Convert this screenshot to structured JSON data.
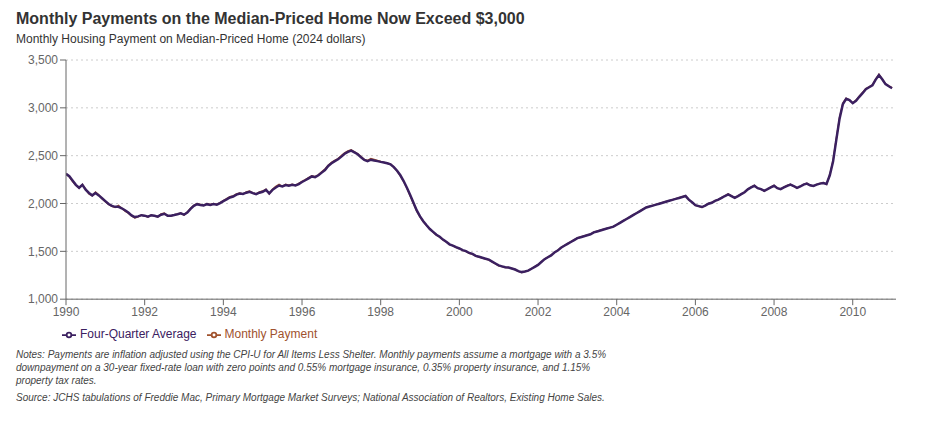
{
  "chart_data": {
    "type": "line",
    "title": "Monthly Payments on the Median-Priced Home Now Exceed $3,000",
    "subtitle": "Monthly Housing Payment on Median-Priced Home (2024 dollars)",
    "annotations": [
      "Notes: Payments are inflation adjusted using the CPI-U for All Items Less Shelter. Monthly payments assume a mortgage with a 3.5%\ndownpayment on a 30-year fixed-rate loan with zero points and 0.55% mortgage insurance, 0.35% property insurance, and 1.15%\nproperty tax rates.",
      "Source: JCHS tabulations of Freddie Mac, Primary Mortgage Market Surveys; National Association of Realtors, Existing Home Sales."
    ],
    "xlim": [
      1990,
      2011.1
    ],
    "xticks": [
      1990,
      1992,
      1994,
      1996,
      1998,
      2000,
      2002,
      2004,
      2006,
      2008,
      2010
    ],
    "ylim": [
      1000,
      3500
    ],
    "yticks": [
      {
        "value": 1000,
        "label": "1,000"
      },
      {
        "value": 1500,
        "label": "1,500"
      },
      {
        "value": 2000,
        "label": "2,000"
      },
      {
        "value": 2500,
        "label": "2,500"
      },
      {
        "value": 3000,
        "label": "3,000"
      },
      {
        "value": 3500,
        "label": "3,500"
      }
    ],
    "grid": true,
    "legend": "bottom",
    "x": [
      1990,
      1990.0833333333,
      1990.1666666667,
      1990.25,
      1990.3333333333,
      1990.4166666667,
      1990.5,
      1990.5833333333,
      1990.6666666667,
      1990.75,
      1990.8333333333,
      1990.9166666667,
      1991,
      1991.0833333333,
      1991.1666666667,
      1991.25,
      1991.3333333333,
      1991.4166666667,
      1991.5,
      1991.5833333333,
      1991.6666666667,
      1991.75,
      1991.8333333333,
      1991.9166666667,
      1992,
      1992.0833333333,
      1992.1666666667,
      1992.25,
      1992.3333333333,
      1992.4166666667,
      1992.5,
      1992.5833333333,
      1992.6666666667,
      1992.75,
      1992.8333333333,
      1992.9166666667,
      1993,
      1993.0833333333,
      1993.1666666667,
      1993.25,
      1993.3333333333,
      1993.4166666667,
      1993.5,
      1993.5833333333,
      1993.6666666667,
      1993.75,
      1993.8333333333,
      1993.9166666667,
      1994,
      1994.0833333333,
      1994.1666666667,
      1994.25,
      1994.3333333333,
      1994.4166666667,
      1994.5,
      1994.5833333333,
      1994.6666666667,
      1994.75,
      1994.8333333333,
      1994.9166666667,
      1995,
      1995.0833333333,
      1995.1666666667,
      1995.25,
      1995.3333333333,
      1995.4166666667,
      1995.5,
      1995.5833333333,
      1995.6666666667,
      1995.75,
      1995.8333333333,
      1995.9166666667,
      1996,
      1996.0833333333,
      1996.1666666667,
      1996.25,
      1996.3333333333,
      1996.4166666667,
      1996.5,
      1996.5833333333,
      1996.6666666667,
      1996.75,
      1996.8333333333,
      1996.9166666667,
      1997,
      1997.0833333333,
      1997.1666666667,
      1997.25,
      1997.3333333333,
      1997.4166666667,
      1997.5,
      1997.5833333333,
      1997.6666666667,
      1997.75,
      1997.8333333333,
      1997.9166666667,
      1998,
      1998.0833333333,
      1998.1666666667,
      1998.25,
      1998.3333333333,
      1998.4166666667,
      1998.5,
      1998.5833333333,
      1998.6666666667,
      1998.75,
      1998.8333333333,
      1998.9166666667,
      1999,
      1999.0833333333,
      1999.1666666667,
      1999.25,
      1999.3333333333,
      1999.4166666667,
      1999.5,
      1999.5833333333,
      1999.6666666667,
      1999.75,
      1999.8333333333,
      1999.9166666667,
      2000,
      2000.0833333333,
      2000.1666666667,
      2000.25,
      2000.3333333333,
      2000.4166666667,
      2000.5,
      2000.5833333333,
      2000.6666666667,
      2000.75,
      2000.8333333333,
      2000.9166666667,
      2001,
      2001.0833333333,
      2001.1666666667,
      2001.25,
      2001.3333333333,
      2001.4166666667,
      2001.5,
      2001.5833333333,
      2001.6666666667,
      2001.75,
      2001.8333333333,
      2001.9166666667,
      2002,
      2002.0833333333,
      2002.1666666667,
      2002.25,
      2002.3333333333,
      2002.4166666667,
      2002.5,
      2002.5833333333,
      2002.6666666667,
      2002.75,
      2002.8333333333,
      2002.9166666667,
      2003,
      2003.0833333333,
      2003.1666666667,
      2003.25,
      2003.3333333333,
      2003.4166666667,
      2003.5,
      2003.5833333333,
      2003.6666666667,
      2003.75,
      2003.8333333333,
      2003.9166666667,
      2004,
      2004.0833333333,
      2004.1666666667,
      2004.25,
      2004.3333333333,
      2004.4166666667,
      2004.5,
      2004.5833333333,
      2004.6666666667,
      2004.75,
      2004.8333333333,
      2004.9166666667,
      2005,
      2005.0833333333,
      2005.1666666667,
      2005.25,
      2005.3333333333,
      2005.4166666667,
      2005.5,
      2005.5833333333,
      2005.6666666667,
      2005.75,
      2005.8333333333,
      2005.9166666667,
      2006,
      2006.0833333333,
      2006.1666666667,
      2006.25,
      2006.3333333333,
      2006.4166666667,
      2006.5,
      2006.5833333333,
      2006.6666666667,
      2006.75,
      2006.8333333333,
      2006.9166666667,
      2007,
      2007.0833333333,
      2007.1666666667,
      2007.25,
      2007.3333333333,
      2007.4166666667,
      2007.5,
      2007.5833333333,
      2007.6666666667,
      2007.75,
      2007.8333333333,
      2007.9166666667,
      2008,
      2008.0833333333,
      2008.1666666667,
      2008.25,
      2008.3333333333,
      2008.4166666667,
      2008.5,
      2008.5833333333,
      2008.6666666667,
      2008.75,
      2008.8333333333,
      2008.9166666667,
      2009,
      2009.0833333333,
      2009.1666666667,
      2009.25,
      2009.3333333333,
      2009.4166666667,
      2009.5,
      2009.5833333333,
      2009.6666666667,
      2009.75,
      2009.8333333333,
      2009.9166666667,
      2010,
      2010.0833333333,
      2010.1666666667,
      2010.25,
      2010.3333333333,
      2010.4166666667,
      2010.5,
      2010.5833333333,
      2010.6666666667,
      2010.75,
      2010.8333333333,
      2010.9166666667,
      2011
    ],
    "series": [
      {
        "name": "Monthly Payment",
        "color": "#A0522D",
        "values": [
          2310,
          2280,
          2230,
          2190,
          2160,
          2200,
          2150,
          2100,
          2080,
          2120,
          2090,
          2050,
          2020,
          1990,
          1970,
          1960,
          1980,
          1950,
          1920,
          1900,
          1870,
          1850,
          1860,
          1880,
          1870,
          1860,
          1880,
          1870,
          1860,
          1890,
          1900,
          1870,
          1870,
          1880,
          1890,
          1900,
          1880,
          1910,
          1950,
          1980,
          2000,
          1990,
          1980,
          2000,
          1990,
          2000,
          1990,
          2010,
          2030,
          2050,
          2070,
          2080,
          2100,
          2110,
          2100,
          2120,
          2130,
          2110,
          2100,
          2120,
          2130,
          2150,
          2100,
          2150,
          2180,
          2200,
          2180,
          2200,
          2190,
          2200,
          2190,
          2210,
          2230,
          2250,
          2270,
          2290,
          2280,
          2300,
          2330,
          2360,
          2400,
          2430,
          2450,
          2470,
          2500,
          2530,
          2550,
          2560,
          2540,
          2520,
          2490,
          2460,
          2450,
          2470,
          2460,
          2450,
          2440,
          2430,
          2420,
          2410,
          2380,
          2340,
          2290,
          2230,
          2160,
          2080,
          2000,
          1920,
          1860,
          1810,
          1770,
          1730,
          1700,
          1670,
          1650,
          1620,
          1600,
          1570,
          1560,
          1540,
          1530,
          1510,
          1500,
          1480,
          1470,
          1450,
          1440,
          1430,
          1420,
          1410,
          1390,
          1370,
          1350,
          1340,
          1330,
          1330,
          1320,
          1310,
          1290,
          1280,
          1290,
          1300,
          1320,
          1340,
          1360,
          1390,
          1420,
          1440,
          1460,
          1490,
          1510,
          1540,
          1560,
          1580,
          1600,
          1620,
          1640,
          1650,
          1660,
          1670,
          1680,
          1700,
          1710,
          1720,
          1730,
          1740,
          1750,
          1760,
          1780,
          1800,
          1820,
          1840,
          1860,
          1880,
          1900,
          1920,
          1940,
          1960,
          1970,
          1980,
          1990,
          2000,
          2010,
          2020,
          2030,
          2040,
          2050,
          2060,
          2070,
          2080,
          2040,
          2010,
          1980,
          1970,
          1960,
          1980,
          2000,
          2010,
          2030,
          2040,
          2060,
          2080,
          2100,
          2080,
          2060,
          2080,
          2100,
          2120,
          2150,
          2170,
          2190,
          2160,
          2150,
          2130,
          2150,
          2170,
          2190,
          2160,
          2150,
          2170,
          2190,
          2200,
          2180,
          2160,
          2180,
          2200,
          2210,
          2190,
          2180,
          2200,
          2210,
          2220,
          2200,
          2300,
          2450,
          2680,
          2900,
          3050,
          3100,
          3080,
          3050,
          3080,
          3120,
          3160,
          3200,
          3220,
          3240,
          3300,
          3350,
          3300,
          3250,
          3230,
          3210
        ]
      },
      {
        "name": "Four-Quarter Average",
        "color": "#3B2060",
        "values": [
          2310,
          2285,
          2240,
          2195,
          2165,
          2195,
          2145,
          2110,
          2085,
          2110,
          2085,
          2055,
          2025,
          1995,
          1975,
          1965,
          1965,
          1950,
          1930,
          1905,
          1875,
          1858,
          1865,
          1878,
          1873,
          1862,
          1878,
          1872,
          1863,
          1883,
          1893,
          1873,
          1873,
          1880,
          1888,
          1897,
          1883,
          1905,
          1943,
          1975,
          1993,
          1985,
          1980,
          1993,
          1985,
          1995,
          1988,
          2004,
          2025,
          2043,
          2063,
          2073,
          2093,
          2105,
          2100,
          2113,
          2123,
          2108,
          2098,
          2113,
          2123,
          2143,
          2105,
          2143,
          2168,
          2188,
          2178,
          2193,
          2185,
          2195,
          2188,
          2203,
          2225,
          2243,
          2263,
          2283,
          2275,
          2295,
          2323,
          2350,
          2393,
          2420,
          2443,
          2463,
          2490,
          2520,
          2540,
          2553,
          2535,
          2515,
          2483,
          2455,
          2443,
          2458,
          2450,
          2443,
          2435,
          2428,
          2420,
          2410,
          2380,
          2343,
          2295,
          2235,
          2165,
          2088,
          2008,
          1928,
          1865,
          1815,
          1773,
          1733,
          1703,
          1673,
          1653,
          1623,
          1600,
          1573,
          1560,
          1543,
          1530,
          1513,
          1503,
          1483,
          1473,
          1453,
          1443,
          1433,
          1423,
          1413,
          1393,
          1373,
          1353,
          1343,
          1333,
          1330,
          1320,
          1310,
          1293,
          1283,
          1290,
          1298,
          1318,
          1338,
          1358,
          1388,
          1418,
          1438,
          1458,
          1488,
          1508,
          1538,
          1558,
          1578,
          1598,
          1618,
          1638,
          1648,
          1658,
          1668,
          1678,
          1698,
          1708,
          1718,
          1728,
          1738,
          1748,
          1758,
          1778,
          1798,
          1818,
          1838,
          1858,
          1878,
          1898,
          1918,
          1938,
          1958,
          1968,
          1978,
          1988,
          1998,
          2008,
          2018,
          2028,
          2038,
          2048,
          2058,
          2068,
          2078,
          2040,
          2013,
          1983,
          1973,
          1963,
          1978,
          1998,
          2008,
          2028,
          2040,
          2058,
          2078,
          2095,
          2078,
          2060,
          2078,
          2098,
          2118,
          2148,
          2168,
          2185,
          2160,
          2150,
          2133,
          2150,
          2168,
          2185,
          2160,
          2150,
          2168,
          2185,
          2198,
          2183,
          2163,
          2178,
          2198,
          2208,
          2190,
          2183,
          2198,
          2208,
          2215,
          2205,
          2295,
          2438,
          2668,
          2890,
          3040,
          3095,
          3080,
          3048,
          3073,
          3115,
          3153,
          3195,
          3215,
          3235,
          3295,
          3343,
          3298,
          3248,
          3225,
          3205
        ]
      }
    ]
  }
}
